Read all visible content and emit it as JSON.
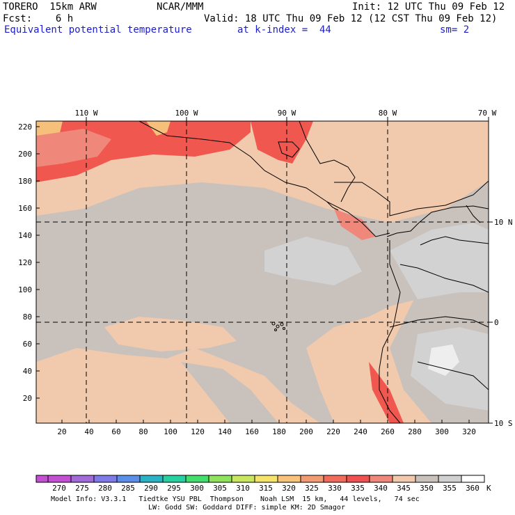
{
  "header": {
    "model": "TORERO  15km ARW",
    "org": "NCAR/MMM",
    "init": "Init: 12 UTC Thu 09 Feb 12",
    "fcst": "Fcst:    6 h",
    "valid": "Valid: 18 UTC Thu 09 Feb 12 (12 CST Thu 09 Feb 12)",
    "field": "Equivalent potential temperature",
    "level": "at k-index =  44",
    "smooth": "sm= 2"
  },
  "map": {
    "lon_labels": [
      "110 W",
      "100 W",
      "90 W",
      "80 W",
      "70 W"
    ],
    "lat_labels": [
      "10 N",
      "0",
      "10 S"
    ],
    "y_ticks": [
      "220",
      "200",
      "180",
      "160",
      "140",
      "120",
      "100",
      "80",
      "60",
      "40",
      "20"
    ],
    "x_ticks": [
      "20",
      "40",
      "60",
      "80",
      "100",
      "120",
      "140",
      "160",
      "180",
      "200",
      "220",
      "240",
      "260",
      "280",
      "300",
      "320"
    ]
  },
  "colorbar": {
    "labels": [
      "270",
      "275",
      "280",
      "285",
      "290",
      "295",
      "300",
      "305",
      "310",
      "315",
      "320",
      "325",
      "330",
      "335",
      "340",
      "345",
      "350",
      "355",
      "360"
    ],
    "unit": "K",
    "colors": [
      "#c34fd2",
      "#a36ad9",
      "#7e7ae8",
      "#5b8ee9",
      "#2ab3c4",
      "#27d0a0",
      "#44de6c",
      "#8ee25c",
      "#c9e75e",
      "#f6e36a",
      "#f7c27b",
      "#f29a72",
      "#f06b5a",
      "#f0504f",
      "#f0877b",
      "#f2c8ad",
      "#c9c2bc",
      "#d0d0d0",
      "#ffffff"
    ]
  },
  "footer": {
    "line1": "Model Info: V3.3.1   Tiedtke YSU PBL  Thompson    Noah LSM  15 km,   44 levels,   74 sec",
    "line2": "LW: Godd SW: Goddard DIFF: simple KM: 2D Smagor"
  }
}
